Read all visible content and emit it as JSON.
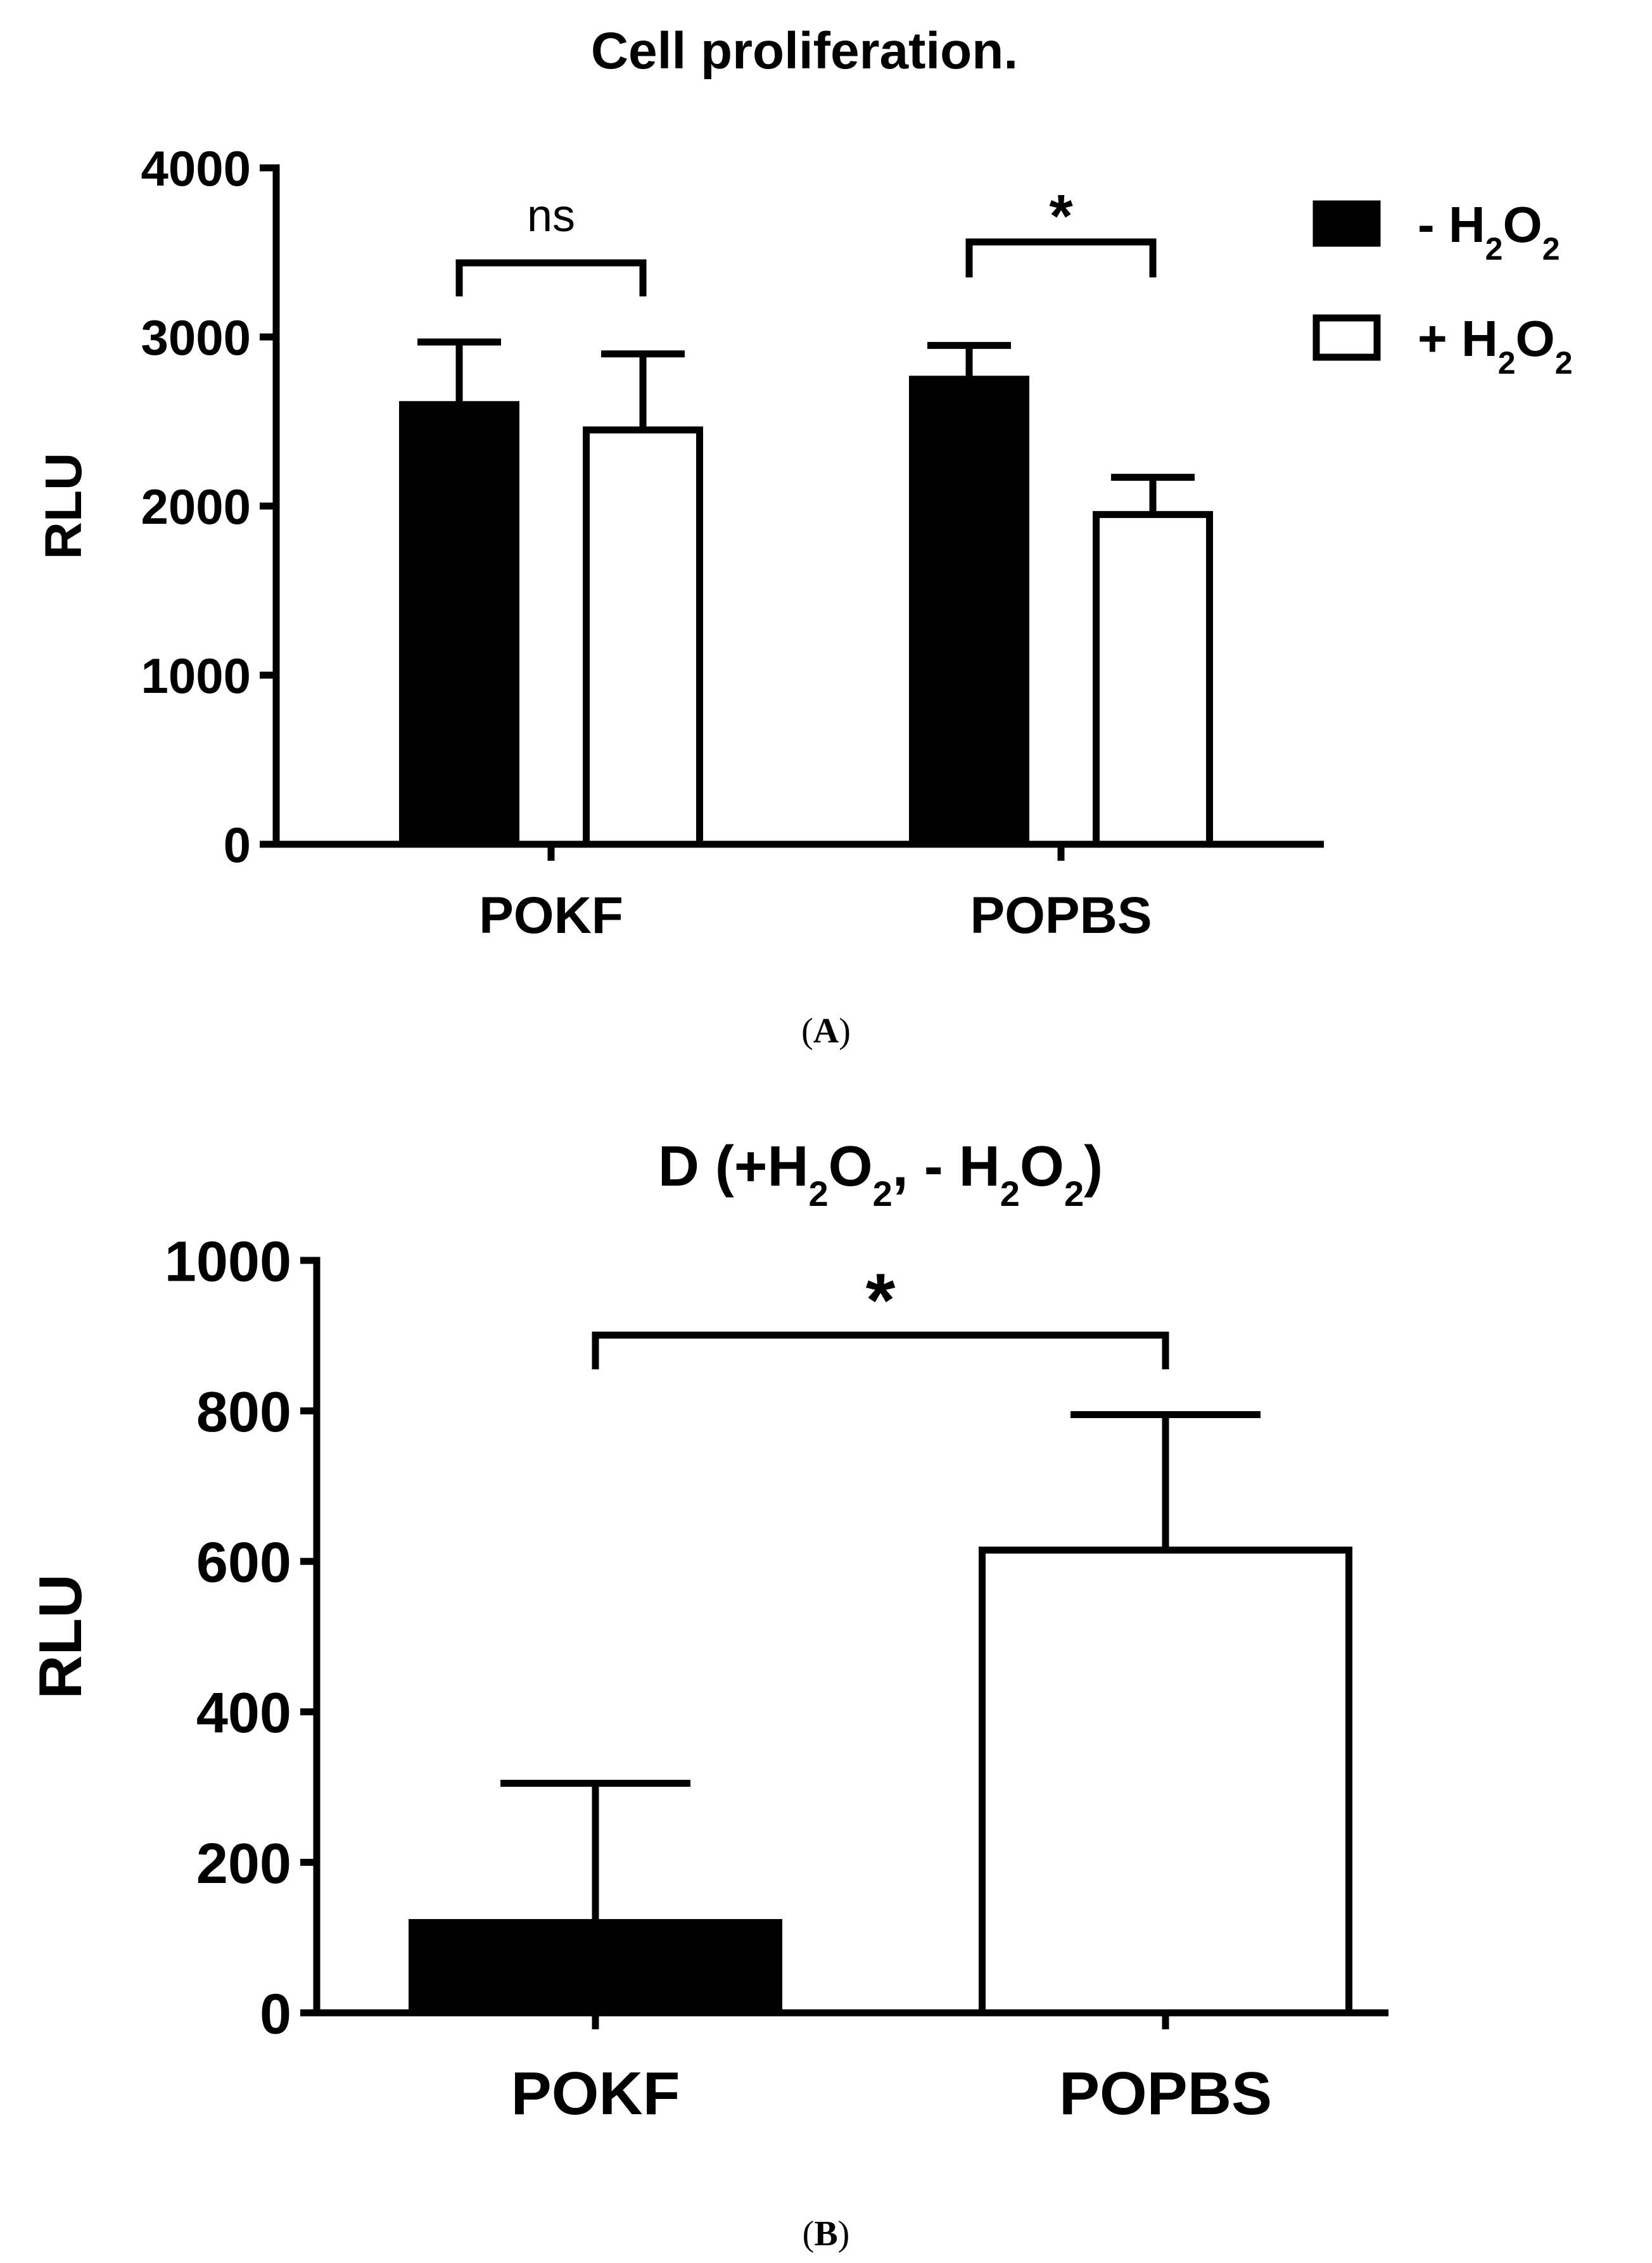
{
  "panel_a_label": "A",
  "panel_b_label": "B",
  "colors": {
    "ink": "#000000",
    "paper": "#ffffff"
  },
  "chart_data": [
    {
      "type": "bar",
      "title": "Cell proliferation.",
      "ylabel": "RLU",
      "xlabel": "",
      "ylim": [
        0,
        4000
      ],
      "yticks": [
        0,
        1000,
        2000,
        3000,
        4000
      ],
      "grid": false,
      "legend_position": "top-right",
      "categories": [
        "POKF",
        "POPBS"
      ],
      "series": [
        {
          "name": "- H2O2",
          "fill": "#000000",
          "values": [
            2600,
            2750
          ],
          "errors": [
            370,
            200
          ]
        },
        {
          "name": "+ H2O2",
          "fill": "#ffffff",
          "values": [
            2450,
            1950
          ],
          "errors": [
            450,
            220
          ]
        }
      ],
      "annotations": [
        {
          "category": "POKF",
          "text": "ns"
        },
        {
          "category": "POPBS",
          "text": "*"
        }
      ]
    },
    {
      "type": "bar",
      "title": "D (+H2O2, - H2O2)",
      "ylabel": "RLU",
      "xlabel": "",
      "ylim": [
        0,
        1000
      ],
      "yticks": [
        0,
        200,
        400,
        600,
        800,
        1000
      ],
      "grid": false,
      "categories": [
        "POKF",
        "POPBS"
      ],
      "values": [
        120,
        615
      ],
      "errors": [
        185,
        180
      ],
      "fills": [
        "#000000",
        "#ffffff"
      ],
      "annotations": [
        {
          "between": [
            "POKF",
            "POPBS"
          ],
          "text": "*"
        }
      ]
    }
  ]
}
